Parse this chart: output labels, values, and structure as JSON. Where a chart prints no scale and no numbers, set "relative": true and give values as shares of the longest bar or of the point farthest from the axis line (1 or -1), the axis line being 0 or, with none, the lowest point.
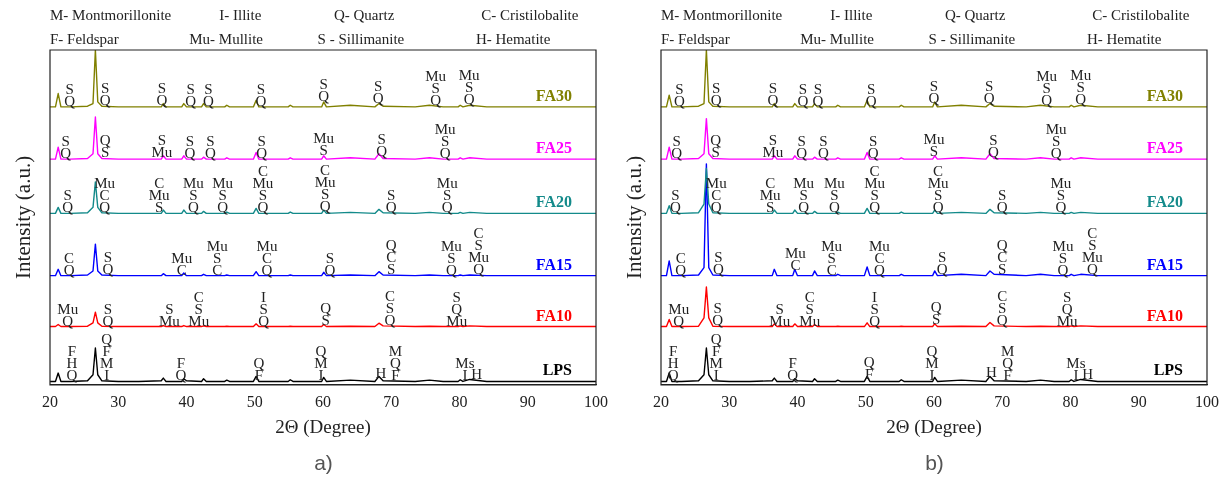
{
  "chart_data": [
    {
      "type": "line",
      "title": "a)",
      "xlabel": "2Θ (Degree)",
      "ylabel": "Intensity (a.u.)",
      "relative": true,
      "tick_labels": "x",
      "xlim": [
        20,
        100
      ],
      "xticks": [
        20,
        30,
        40,
        50,
        60,
        70,
        80,
        90,
        100
      ],
      "x": [
        20,
        20.8,
        21.2,
        21.6,
        23,
        25.5,
        26.3,
        26.65,
        27,
        27.6,
        30,
        33,
        36.3,
        36.6,
        37,
        39.3,
        39.6,
        40,
        42.2,
        42.5,
        42.9,
        45.6,
        45.9,
        46.3,
        49.8,
        50.2,
        50.6,
        54.9,
        55.2,
        55.6,
        59.8,
        60.1,
        60.5,
        64,
        67.6,
        68.2,
        68.8,
        73.5,
        75.6,
        77.6,
        79.8,
        80.1,
        80.5,
        81.5,
        84,
        90,
        95,
        100
      ],
      "series": [
        {
          "name": "FA30",
          "color": "#808000",
          "values": [
            0.83,
            0.83,
            0.87,
            0.83,
            0.83,
            0.832,
            0.84,
            1.0,
            0.845,
            0.832,
            0.83,
            0.83,
            0.83,
            0.84,
            0.83,
            0.83,
            0.84,
            0.83,
            0.83,
            0.84,
            0.83,
            0.83,
            0.835,
            0.83,
            0.83,
            0.85,
            0.83,
            0.83,
            0.835,
            0.83,
            0.83,
            0.845,
            0.83,
            0.835,
            0.83,
            0.84,
            0.832,
            0.83,
            0.835,
            0.83,
            0.83,
            0.835,
            0.83,
            0.835,
            0.83,
            0.83,
            0.83,
            0.83
          ]
        },
        {
          "name": "FA25",
          "color": "#ff00ff",
          "values": [
            0.674,
            0.674,
            0.71,
            0.674,
            0.674,
            0.676,
            0.69,
            0.8,
            0.69,
            0.676,
            0.674,
            0.674,
            0.674,
            0.684,
            0.674,
            0.674,
            0.684,
            0.674,
            0.674,
            0.68,
            0.674,
            0.674,
            0.678,
            0.674,
            0.674,
            0.694,
            0.674,
            0.674,
            0.678,
            0.674,
            0.674,
            0.684,
            0.674,
            0.678,
            0.674,
            0.69,
            0.676,
            0.674,
            0.678,
            0.674,
            0.674,
            0.678,
            0.674,
            0.678,
            0.674,
            0.674,
            0.674,
            0.674
          ]
        },
        {
          "name": "FA20",
          "color": "#138a8a",
          "values": [
            0.512,
            0.512,
            0.53,
            0.512,
            0.512,
            0.514,
            0.53,
            0.606,
            0.53,
            0.514,
            0.512,
            0.512,
            0.512,
            0.522,
            0.512,
            0.512,
            0.522,
            0.512,
            0.512,
            0.518,
            0.512,
            0.512,
            0.516,
            0.512,
            0.512,
            0.527,
            0.512,
            0.512,
            0.516,
            0.512,
            0.512,
            0.522,
            0.512,
            0.515,
            0.512,
            0.524,
            0.514,
            0.512,
            0.515,
            0.512,
            0.512,
            0.515,
            0.512,
            0.515,
            0.512,
            0.512,
            0.512,
            0.512
          ]
        },
        {
          "name": "FA15",
          "color": "#0000ff",
          "values": [
            0.326,
            0.326,
            0.345,
            0.326,
            0.326,
            0.328,
            0.34,
            0.42,
            0.34,
            0.328,
            0.326,
            0.326,
            0.326,
            0.332,
            0.326,
            0.326,
            0.334,
            0.326,
            0.326,
            0.33,
            0.326,
            0.326,
            0.328,
            0.326,
            0.326,
            0.338,
            0.326,
            0.326,
            0.328,
            0.326,
            0.326,
            0.336,
            0.326,
            0.328,
            0.326,
            0.338,
            0.328,
            0.326,
            0.328,
            0.326,
            0.326,
            0.328,
            0.326,
            0.328,
            0.326,
            0.326,
            0.326,
            0.326
          ]
        },
        {
          "name": "FA10",
          "color": "#ff0000",
          "values": [
            0.174,
            0.174,
            0.18,
            0.174,
            0.174,
            0.175,
            0.185,
            0.217,
            0.185,
            0.175,
            0.174,
            0.174,
            0.174,
            0.177,
            0.174,
            0.174,
            0.177,
            0.174,
            0.174,
            0.176,
            0.174,
            0.174,
            0.175,
            0.174,
            0.174,
            0.182,
            0.174,
            0.174,
            0.175,
            0.174,
            0.174,
            0.18,
            0.174,
            0.175,
            0.174,
            0.184,
            0.176,
            0.174,
            0.175,
            0.174,
            0.174,
            0.176,
            0.174,
            0.176,
            0.174,
            0.174,
            0.174,
            0.174
          ]
        },
        {
          "name": "LPS",
          "color": "#000000",
          "values": [
            0.01,
            0.01,
            0.035,
            0.01,
            0.01,
            0.012,
            0.03,
            0.11,
            0.03,
            0.012,
            0.01,
            0.01,
            0.012,
            0.02,
            0.01,
            0.01,
            0.018,
            0.012,
            0.01,
            0.018,
            0.01,
            0.01,
            0.014,
            0.01,
            0.01,
            0.025,
            0.01,
            0.01,
            0.015,
            0.01,
            0.01,
            0.022,
            0.01,
            0.014,
            0.01,
            0.025,
            0.012,
            0.01,
            0.014,
            0.01,
            0.01,
            0.015,
            0.01,
            0.016,
            0.01,
            0.01,
            0.01,
            0.01
          ]
        }
      ],
      "annotations": [
        "M- Montmorillonite",
        "I- Illite",
        "Q- Quartz",
        "C- Cristilobalite",
        "F- Feldspar",
        "Mu- Mullite",
        "S - Sillimanite",
        "H- Hematite",
        {
          "text": "S\nQ",
          "x": 22.9,
          "y": 0.83
        },
        {
          "text": "S\nQ",
          "x": 28.1,
          "y": 0.832
        },
        {
          "text": "S\nQ",
          "x": 36.4,
          "y": 0.833
        },
        {
          "text": "S\nQ",
          "x": 40.6,
          "y": 0.83
        },
        {
          "text": "S\nQ",
          "x": 43.2,
          "y": 0.83
        },
        {
          "text": "S\nQ",
          "x": 50.9,
          "y": 0.83
        },
        {
          "text": "S\nQ",
          "x": 60.1,
          "y": 0.845
        },
        {
          "text": "S\nQ",
          "x": 68.1,
          "y": 0.838
        },
        {
          "text": "Mu\nS\nQ",
          "x": 76.5,
          "y": 0.833
        },
        {
          "text": "Mu\nS\nQ",
          "x": 81.4,
          "y": 0.835
        },
        {
          "text": "S\nQ",
          "x": 22.3,
          "y": 0.674
        },
        {
          "text": "Q\nS",
          "x": 28.1,
          "y": 0.676
        },
        {
          "text": "S\nMu",
          "x": 36.4,
          "y": 0.677
        },
        {
          "text": "S\nQ",
          "x": 40.5,
          "y": 0.674
        },
        {
          "text": "S\nQ",
          "x": 43.5,
          "y": 0.674
        },
        {
          "text": "S\nQ",
          "x": 51,
          "y": 0.674
        },
        {
          "text": "Mu\nS",
          "x": 60.1,
          "y": 0.684
        },
        {
          "text": "S\nQ",
          "x": 68.6,
          "y": 0.681
        },
        {
          "text": "Mu\nS\nQ",
          "x": 77.9,
          "y": 0.674
        },
        {
          "text": "S\nQ",
          "x": 22.6,
          "y": 0.512
        },
        {
          "text": "Mu\nC\nQ",
          "x": 28,
          "y": 0.514
        },
        {
          "text": "C\nMu\nS",
          "x": 36,
          "y": 0.512
        },
        {
          "text": "Mu\nS\nQ",
          "x": 41,
          "y": 0.512
        },
        {
          "text": "Mu\nS\nQ",
          "x": 45.3,
          "y": 0.512
        },
        {
          "text": "C\nMu\nS\nQ",
          "x": 51.2,
          "y": 0.512
        },
        {
          "text": "C\nMu\nS\nQ",
          "x": 60.3,
          "y": 0.517
        },
        {
          "text": "S\nQ",
          "x": 70,
          "y": 0.513
        },
        {
          "text": "Mu\nS\nQ",
          "x": 78.2,
          "y": 0.512
        },
        {
          "text": "C\nQ",
          "x": 22.8,
          "y": 0.326
        },
        {
          "text": "S\nQ",
          "x": 28.5,
          "y": 0.327
        },
        {
          "text": "Mu\nC",
          "x": 39.3,
          "y": 0.326
        },
        {
          "text": "Mu\nS\nC",
          "x": 44.5,
          "y": 0.326
        },
        {
          "text": "Mu\nC\nQ",
          "x": 51.8,
          "y": 0.326
        },
        {
          "text": "S\nQ",
          "x": 61,
          "y": 0.326
        },
        {
          "text": "Q\nC\nS",
          "x": 70,
          "y": 0.327
        },
        {
          "text": "Mu\nS\nQ",
          "x": 78.8,
          "y": 0.326
        },
        {
          "text": "C\nS\nMu\nQ",
          "x": 82.8,
          "y": 0.327
        },
        {
          "text": "Mu\nQ",
          "x": 22.6,
          "y": 0.174
        },
        {
          "text": "S\nQ",
          "x": 28.5,
          "y": 0.174
        },
        {
          "text": "S\nMu",
          "x": 37.5,
          "y": 0.174
        },
        {
          "text": "C\nS\nMu",
          "x": 41.8,
          "y": 0.174
        },
        {
          "text": "I\nS\nQ",
          "x": 51.3,
          "y": 0.174
        },
        {
          "text": "Q\nS",
          "x": 60.4,
          "y": 0.1755
        },
        {
          "text": "C\nS\nQ",
          "x": 69.8,
          "y": 0.176
        },
        {
          "text": "S\nQ\nMu",
          "x": 79.6,
          "y": 0.174
        },
        {
          "text": "F\nH\nQ",
          "x": 23.2,
          "y": 0.01
        },
        {
          "text": "Q\nF\nM\nI",
          "x": 28.3,
          "y": 0.0114
        },
        {
          "text": "F\nQ",
          "x": 39.2,
          "y": 0.01
        },
        {
          "text": "Q\nF",
          "x": 50.6,
          "y": 0.01
        },
        {
          "text": "Q\nM\nI",
          "x": 59.7,
          "y": 0.01
        },
        {
          "text": "H",
          "x": 68.5,
          "y": 0.0185
        },
        {
          "text": "M\nQ\nF",
          "x": 70.6,
          "y": 0.0113
        },
        {
          "text": "Ms\nI",
          "x": 80.8,
          "y": 0.012
        },
        {
          "text": "H",
          "x": 82.5,
          "y": 0.0136
        }
      ]
    },
    {
      "type": "line",
      "title": "b)",
      "xlabel": "2Θ (Degree)",
      "ylabel": "Intensity (a.u.)",
      "relative": true,
      "tick_labels": "x",
      "xlim": [
        20,
        100
      ],
      "xticks": [
        20,
        30,
        40,
        50,
        60,
        70,
        80,
        90,
        100
      ],
      "x": [
        20,
        20.8,
        21.2,
        21.6,
        23,
        25.5,
        26.3,
        26.65,
        27,
        27.6,
        30,
        33,
        36.3,
        36.6,
        37,
        39.3,
        39.6,
        40,
        42.2,
        42.5,
        42.9,
        45.6,
        45.9,
        46.3,
        49.8,
        50.2,
        50.6,
        54.9,
        55.2,
        55.6,
        59.8,
        60.1,
        60.5,
        64,
        67.6,
        68.2,
        68.8,
        73.5,
        75.6,
        77.6,
        79.8,
        80.1,
        80.5,
        81.5,
        84,
        90,
        95,
        100
      ],
      "series": [
        {
          "name": "FA30",
          "color": "#808000",
          "values": [
            0.83,
            0.83,
            0.865,
            0.83,
            0.83,
            0.832,
            0.84,
            1.0,
            0.845,
            0.832,
            0.83,
            0.83,
            0.83,
            0.84,
            0.83,
            0.83,
            0.84,
            0.83,
            0.83,
            0.84,
            0.83,
            0.83,
            0.835,
            0.83,
            0.83,
            0.85,
            0.83,
            0.83,
            0.835,
            0.83,
            0.83,
            0.845,
            0.83,
            0.835,
            0.83,
            0.84,
            0.832,
            0.83,
            0.835,
            0.83,
            0.83,
            0.835,
            0.83,
            0.835,
            0.83,
            0.83,
            0.83,
            0.83
          ]
        },
        {
          "name": "FA25",
          "color": "#ff00ff",
          "values": [
            0.674,
            0.674,
            0.71,
            0.674,
            0.674,
            0.676,
            0.69,
            0.795,
            0.69,
            0.676,
            0.674,
            0.674,
            0.674,
            0.684,
            0.674,
            0.674,
            0.684,
            0.674,
            0.674,
            0.68,
            0.674,
            0.674,
            0.678,
            0.674,
            0.674,
            0.694,
            0.674,
            0.674,
            0.678,
            0.674,
            0.674,
            0.684,
            0.674,
            0.678,
            0.674,
            0.69,
            0.676,
            0.674,
            0.678,
            0.674,
            0.674,
            0.678,
            0.674,
            0.678,
            0.674,
            0.674,
            0.674,
            0.674
          ]
        },
        {
          "name": "FA20",
          "color": "#138a8a",
          "values": [
            0.512,
            0.512,
            0.535,
            0.512,
            0.512,
            0.514,
            0.54,
            0.646,
            0.54,
            0.514,
            0.512,
            0.512,
            0.512,
            0.522,
            0.512,
            0.512,
            0.522,
            0.512,
            0.512,
            0.518,
            0.512,
            0.512,
            0.516,
            0.512,
            0.512,
            0.527,
            0.512,
            0.512,
            0.516,
            0.512,
            0.512,
            0.522,
            0.512,
            0.515,
            0.512,
            0.524,
            0.514,
            0.512,
            0.515,
            0.512,
            0.512,
            0.515,
            0.512,
            0.515,
            0.512,
            0.512,
            0.512,
            0.512
          ]
        },
        {
          "name": "FA15",
          "color": "#0000ff",
          "values": [
            0.326,
            0.326,
            0.37,
            0.326,
            0.326,
            0.328,
            0.35,
            0.66,
            0.35,
            0.328,
            0.326,
            0.326,
            0.326,
            0.345,
            0.326,
            0.326,
            0.345,
            0.326,
            0.326,
            0.34,
            0.326,
            0.326,
            0.33,
            0.326,
            0.326,
            0.352,
            0.326,
            0.326,
            0.33,
            0.326,
            0.326,
            0.34,
            0.326,
            0.33,
            0.326,
            0.34,
            0.33,
            0.326,
            0.33,
            0.326,
            0.326,
            0.33,
            0.326,
            0.33,
            0.326,
            0.326,
            0.326,
            0.326
          ]
        },
        {
          "name": "FA10",
          "color": "#ff0000",
          "values": [
            0.174,
            0.174,
            0.195,
            0.174,
            0.174,
            0.175,
            0.2,
            0.292,
            0.2,
            0.175,
            0.174,
            0.174,
            0.174,
            0.182,
            0.174,
            0.174,
            0.182,
            0.174,
            0.174,
            0.18,
            0.174,
            0.174,
            0.175,
            0.174,
            0.174,
            0.185,
            0.174,
            0.174,
            0.175,
            0.174,
            0.174,
            0.182,
            0.174,
            0.175,
            0.174,
            0.186,
            0.176,
            0.174,
            0.175,
            0.174,
            0.174,
            0.176,
            0.174,
            0.176,
            0.174,
            0.174,
            0.174,
            0.174
          ]
        },
        {
          "name": "LPS",
          "color": "#000000",
          "values": [
            0.01,
            0.01,
            0.035,
            0.01,
            0.01,
            0.012,
            0.03,
            0.11,
            0.03,
            0.012,
            0.01,
            0.01,
            0.012,
            0.02,
            0.01,
            0.01,
            0.018,
            0.012,
            0.01,
            0.018,
            0.01,
            0.01,
            0.014,
            0.01,
            0.01,
            0.025,
            0.01,
            0.01,
            0.015,
            0.01,
            0.01,
            0.022,
            0.01,
            0.014,
            0.01,
            0.025,
            0.012,
            0.01,
            0.014,
            0.01,
            0.01,
            0.015,
            0.01,
            0.016,
            0.01,
            0.01,
            0.01,
            0.01
          ]
        }
      ],
      "annotations": [
        "M- Montmorillonite",
        "I- Illite",
        "Q- Quartz",
        "C- Cristilobalite",
        "F- Feldspar",
        "Mu- Mullite",
        "S - Sillimanite",
        "H- Hematite",
        {
          "text": "S\nQ",
          "x": 22.7,
          "y": 0.83
        },
        {
          "text": "S\nQ",
          "x": 28.1,
          "y": 0.832
        },
        {
          "text": "S\nQ",
          "x": 36.4,
          "y": 0.833
        },
        {
          "text": "S\nQ",
          "x": 40.8,
          "y": 0.83
        },
        {
          "text": "S\nQ",
          "x": 43,
          "y": 0.83
        },
        {
          "text": "S\nQ",
          "x": 50.8,
          "y": 0.83
        },
        {
          "text": "S\nQ",
          "x": 60,
          "y": 0.84
        },
        {
          "text": "S\nQ",
          "x": 68.1,
          "y": 0.838
        },
        {
          "text": "Mu\nS\nQ",
          "x": 76.5,
          "y": 0.833
        },
        {
          "text": "Mu\nS\nQ",
          "x": 81.5,
          "y": 0.835
        },
        {
          "text": "S\nQ",
          "x": 22.3,
          "y": 0.674
        },
        {
          "text": "Q\nS",
          "x": 28,
          "y": 0.676
        },
        {
          "text": "S\nMu",
          "x": 36.4,
          "y": 0.677
        },
        {
          "text": "S\nQ",
          "x": 40.6,
          "y": 0.674
        },
        {
          "text": "S\nQ",
          "x": 43.8,
          "y": 0.674
        },
        {
          "text": "S\nQ",
          "x": 51.1,
          "y": 0.674
        },
        {
          "text": "Mu\nS",
          "x": 60,
          "y": 0.681
        },
        {
          "text": "S\nQ",
          "x": 68.7,
          "y": 0.678
        },
        {
          "text": "Mu\nS\nQ",
          "x": 77.9,
          "y": 0.674
        },
        {
          "text": "S\nQ",
          "x": 22.1,
          "y": 0.512
        },
        {
          "text": "Mu\nC\nQ",
          "x": 28.1,
          "y": 0.514
        },
        {
          "text": "C\nMu\nS",
          "x": 36,
          "y": 0.512
        },
        {
          "text": "Mu\nS\nQ",
          "x": 40.9,
          "y": 0.512
        },
        {
          "text": "Mu\nS\nQ",
          "x": 45.4,
          "y": 0.512
        },
        {
          "text": "C\nMu\nS\nQ",
          "x": 51.3,
          "y": 0.512
        },
        {
          "text": "C\nMu\nS\nQ",
          "x": 60.6,
          "y": 0.512
        },
        {
          "text": "S\nQ",
          "x": 70,
          "y": 0.513
        },
        {
          "text": "Mu\nS\nQ",
          "x": 78.6,
          "y": 0.512
        },
        {
          "text": "C\nQ",
          "x": 22.9,
          "y": 0.326
        },
        {
          "text": "S\nQ",
          "x": 28.4,
          "y": 0.327
        },
        {
          "text": "Mu\nC",
          "x": 39.7,
          "y": 0.34
        },
        {
          "text": "Mu\nS\nC",
          "x": 45,
          "y": 0.326
        },
        {
          "text": "Mu\nC\nQ",
          "x": 52,
          "y": 0.326
        },
        {
          "text": "S\nQ",
          "x": 61.2,
          "y": 0.327
        },
        {
          "text": "Q\nC\nS",
          "x": 70,
          "y": 0.327
        },
        {
          "text": "Mu\nS\nQ",
          "x": 78.9,
          "y": 0.326
        },
        {
          "text": "C\nS\nMu\nQ",
          "x": 83.2,
          "y": 0.327
        },
        {
          "text": "Mu\nQ",
          "x": 22.6,
          "y": 0.174
        },
        {
          "text": "S\nQ",
          "x": 28.3,
          "y": 0.175
        },
        {
          "text": "S\nMu",
          "x": 37.4,
          "y": 0.174
        },
        {
          "text": "C\nS\nMu",
          "x": 41.8,
          "y": 0.174
        },
        {
          "text": "I\nS\nQ",
          "x": 51.3,
          "y": 0.174
        },
        {
          "text": "Q\nS",
          "x": 60.3,
          "y": 0.178
        },
        {
          "text": "C\nS\nQ",
          "x": 70,
          "y": 0.175
        },
        {
          "text": "S\nQ\nMu",
          "x": 79.5,
          "y": 0.174
        },
        {
          "text": "F\nH\nQ",
          "x": 21.8,
          "y": 0.01
        },
        {
          "text": "Q\nF\nM\nI",
          "x": 28.1,
          "y": 0.0114
        },
        {
          "text": "F\nQ",
          "x": 39.3,
          "y": 0.01
        },
        {
          "text": "Q\nF",
          "x": 50.5,
          "y": 0.014
        },
        {
          "text": "Q\nM\nI",
          "x": 59.7,
          "y": 0.01
        },
        {
          "text": "H",
          "x": 68.4,
          "y": 0.021
        },
        {
          "text": "M\nQ\nF",
          "x": 70.8,
          "y": 0.011
        },
        {
          "text": "Ms\nI",
          "x": 80.8,
          "y": 0.012
        },
        {
          "text": "H",
          "x": 82.5,
          "y": 0.0136
        }
      ]
    }
  ]
}
